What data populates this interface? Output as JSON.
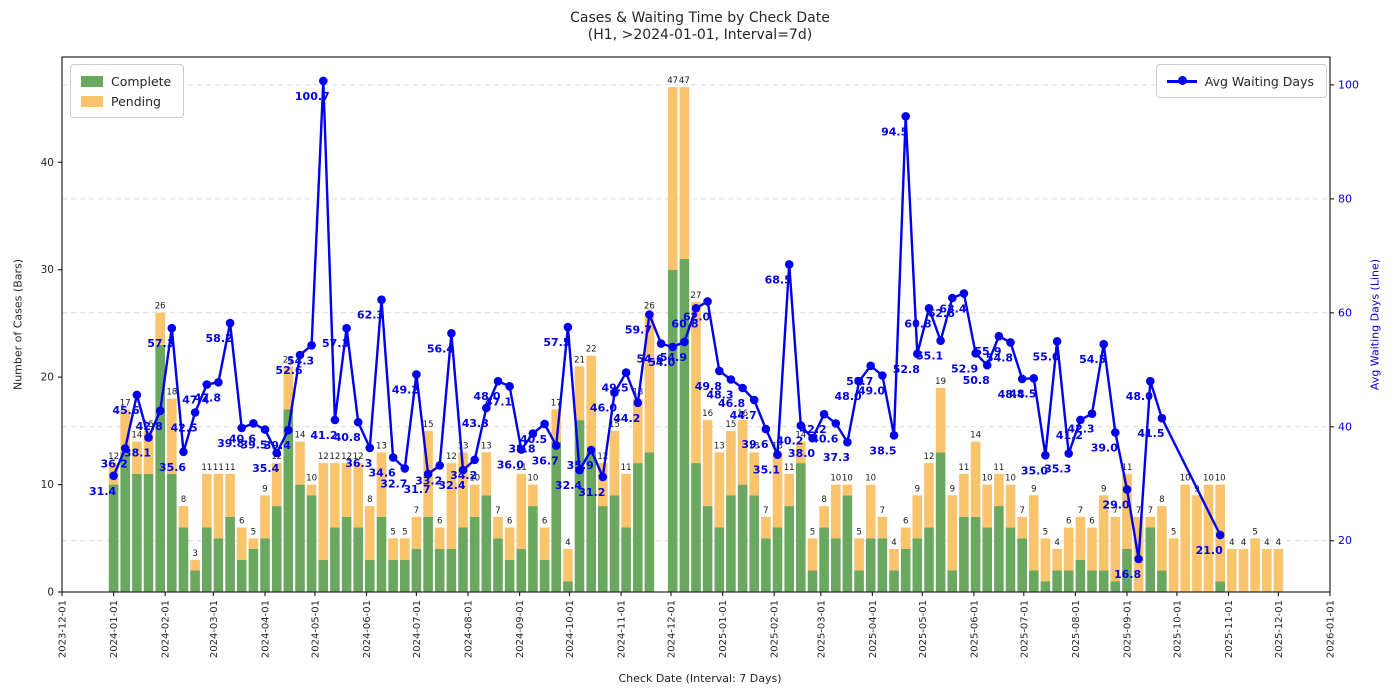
{
  "title": {
    "line1": "Cases & Waiting Time by Check Date",
    "line2": "(H1, >2024-01-01, Interval=7d)"
  },
  "axes": {
    "left_label": "Number of Cases (Bars)",
    "right_label": "Avg Waiting Days (Line)",
    "x_label": "Check Date (Interval: 7 Days)",
    "left_ticks": [
      0,
      10,
      20,
      30,
      40
    ],
    "right_ticks": [
      20,
      40,
      60,
      80,
      100
    ]
  },
  "legend": {
    "complete_label": "Complete",
    "pending_label": "Pending",
    "line_label": "Avg Waiting Days"
  },
  "colors": {
    "complete": "#6aa860",
    "pending": "#f9c46b",
    "line": "#0000ee",
    "right_axis_text": "#0000dd",
    "grid": "#dcdcdc",
    "axis": "#262626",
    "bar_label": "#1a1a1a"
  },
  "chart_data": {
    "type": "bar+line",
    "subtype": "stacked bars with secondary-axis line",
    "x_start": "2024-01-01",
    "x_interval_days": 7,
    "x_axis_range": {
      "start": "2023-12-01",
      "end": "2026-01-01"
    },
    "x_tick_labels": [
      "2023-12-01",
      "2024-01-01",
      "2024-02-01",
      "2024-03-01",
      "2024-04-01",
      "2024-05-01",
      "2024-06-01",
      "2024-07-01",
      "2024-08-01",
      "2024-09-01",
      "2024-10-01",
      "2024-11-01",
      "2024-12-01",
      "2025-01-01",
      "2025-02-01",
      "2025-03-01",
      "2025-04-01",
      "2025-05-01",
      "2025-06-01",
      "2025-07-01",
      "2025-08-01",
      "2025-09-01",
      "2025-10-01",
      "2025-11-01",
      "2025-12-01",
      "2026-01-01"
    ],
    "ylim_left": [
      0,
      49.8
    ],
    "ylim_right": [
      11.0,
      104.9
    ],
    "grid": "dashed horizontal at right-axis ticks",
    "legend_positions": {
      "bars": "upper left",
      "line": "upper right"
    },
    "series": [
      {
        "name": "Complete",
        "values": [
          10,
          13,
          11,
          11,
          23,
          11,
          6,
          2,
          6,
          5,
          7,
          3,
          4,
          5,
          8,
          17,
          10,
          9,
          3,
          6,
          7,
          6,
          3,
          7,
          3,
          3,
          4,
          7,
          4,
          4,
          6,
          7,
          9,
          5,
          3,
          4,
          8,
          3,
          14,
          1,
          16,
          13,
          8,
          9,
          6,
          12,
          13,
          0,
          30,
          31,
          12,
          8,
          6,
          9,
          10,
          9,
          5,
          6,
          8,
          12,
          2,
          6,
          5,
          9,
          2,
          5,
          5,
          2,
          4,
          5,
          6,
          13,
          2,
          7,
          7,
          6,
          8,
          6,
          5,
          2,
          1,
          2,
          2,
          3,
          2,
          2,
          1,
          4,
          0,
          6,
          2,
          0,
          0,
          0,
          0,
          1,
          0,
          0,
          0,
          0,
          0
        ]
      },
      {
        "name": "Pending",
        "values": [
          2,
          4,
          3,
          4,
          3,
          7,
          2,
          1,
          5,
          6,
          4,
          3,
          1,
          4,
          4,
          4,
          4,
          1,
          9,
          6,
          5,
          6,
          5,
          6,
          2,
          2,
          3,
          8,
          2,
          8,
          7,
          3,
          4,
          2,
          3,
          7,
          2,
          3,
          3,
          3,
          5,
          9,
          4,
          6,
          5,
          6,
          13,
          0,
          17,
          16,
          15,
          8,
          7,
          6,
          6,
          4,
          2,
          7,
          3,
          2,
          3,
          2,
          5,
          1,
          3,
          5,
          2,
          2,
          2,
          4,
          6,
          6,
          7,
          4,
          7,
          4,
          3,
          4,
          2,
          7,
          4,
          2,
          4,
          4,
          4,
          7,
          6,
          7,
          7,
          1,
          6,
          5,
          10,
          9,
          10,
          9,
          4,
          4,
          5,
          4,
          4
        ]
      },
      {
        "name": "Avg Waiting Days",
        "values": [
          31.4,
          36.2,
          45.6,
          38.1,
          42.8,
          57.3,
          35.6,
          42.5,
          47.4,
          47.8,
          58.2,
          39.8,
          40.6,
          39.5,
          35.4,
          39.4,
          52.6,
          54.3,
          100.7,
          41.2,
          57.3,
          40.8,
          36.3,
          62.3,
          34.6,
          32.7,
          49.2,
          31.7,
          33.2,
          56.4,
          32.4,
          34.2,
          43.3,
          48.0,
          47.1,
          36.0,
          38.8,
          40.5,
          36.7,
          57.5,
          32.4,
          35.9,
          31.2,
          46.0,
          49.5,
          44.2,
          59.7,
          54.6,
          54.0,
          54.9,
          60.8,
          62.0,
          49.8,
          48.3,
          46.8,
          44.7,
          39.6,
          35.1,
          68.5,
          40.2,
          38.0,
          42.2,
          40.6,
          37.3,
          48.0,
          50.7,
          49.0,
          38.5,
          94.5,
          52.8,
          60.8,
          55.1,
          62.6,
          63.4,
          52.9,
          50.8,
          55.9,
          54.8,
          48.4,
          48.5,
          35.0,
          55.0,
          35.3,
          41.2,
          42.3,
          54.5,
          39.0,
          29.0,
          16.8,
          48.0,
          41.5,
          null,
          null,
          null,
          null,
          21.0,
          null,
          null,
          null,
          null,
          null
        ]
      }
    ]
  }
}
